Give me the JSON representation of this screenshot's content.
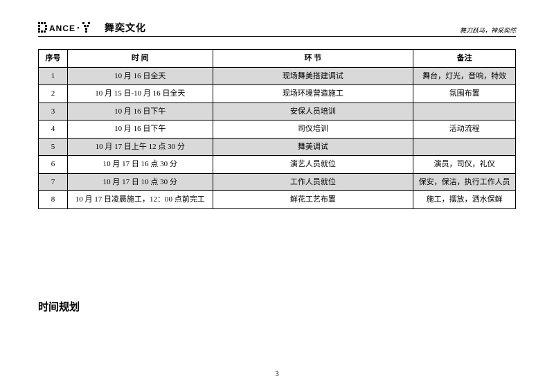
{
  "header": {
    "brand": "舞奕文化",
    "tagline": "舞刀跃马，神采奕然"
  },
  "columns": {
    "seq": "序号",
    "time": "时    间",
    "phase": "环            节",
    "note": "备注"
  },
  "rows": [
    {
      "seq": "1",
      "time": "10 月 16 日全天",
      "phase": "现场舞美搭建调试",
      "note": "舞台，灯光，音响，特效",
      "shade": true
    },
    {
      "seq": "2",
      "time": "10 月 15 日-10 月 16 日全天",
      "phase": "现场环境营造施工",
      "note": "氛围布置",
      "shade": false
    },
    {
      "seq": "3",
      "time": "10 月 16 日下午",
      "phase": "安保人员培训",
      "note": "",
      "shade": true
    },
    {
      "seq": "4",
      "time": "10 月 16 日下午",
      "phase": "司仪培训",
      "note": "活动流程",
      "shade": false
    },
    {
      "seq": "5",
      "time": "10 月 17 日上午 12 点 30 分",
      "phase": "舞美调试",
      "note": "",
      "shade": true
    },
    {
      "seq": "6",
      "time": "10 月 17 日 16 点 30 分",
      "phase": "演艺人员就位",
      "note": "演员，司仪，礼仪",
      "shade": false
    },
    {
      "seq": "7",
      "time": "10 月 17 日 10 点 30 分",
      "phase": "工作人员就位",
      "note": "保安，保洁，执行工作人员",
      "shade": true
    },
    {
      "seq": "8",
      "time": "10 月 17 日凌晨施工，12：00 点前完工",
      "phase": "鲜花工艺布置",
      "note": "施工，摆放，洒水保鲜",
      "shade": false
    }
  ],
  "section_title": "时间规划",
  "page_number": "3"
}
